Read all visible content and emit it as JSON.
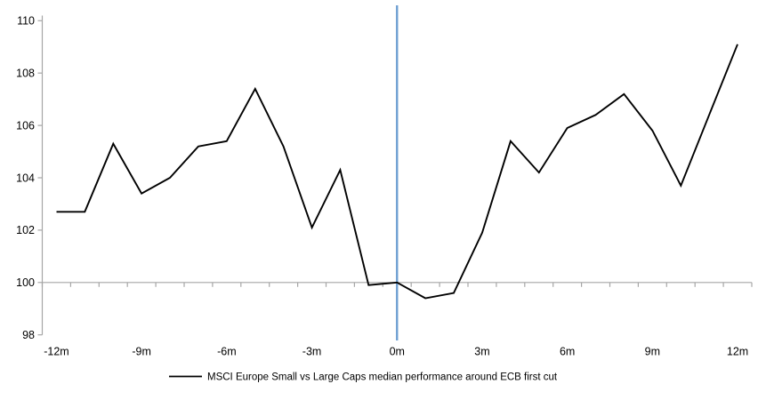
{
  "chart_data": {
    "type": "line",
    "title": "",
    "legend": "MSCI Europe Small vs Large Caps median performance around ECB first cut",
    "x": [
      -12,
      -11,
      -10,
      -9,
      -8,
      -7,
      -6,
      -5,
      -4,
      -3,
      -2,
      -1,
      0,
      1,
      2,
      3,
      4,
      5,
      6,
      7,
      8,
      9,
      10,
      11,
      12
    ],
    "series": [
      {
        "name": "MSCI Europe Small vs Large Caps median performance around ECB first cut",
        "values": [
          102.7,
          102.7,
          105.3,
          103.4,
          104.0,
          105.2,
          105.4,
          107.4,
          105.2,
          102.1,
          104.3,
          99.9,
          100.0,
          99.4,
          99.6,
          101.9,
          105.4,
          104.2,
          105.9,
          106.4,
          107.2,
          105.8,
          103.7,
          106.4,
          109.1
        ]
      }
    ],
    "ylim": [
      98,
      110
    ],
    "yticks": [
      98,
      100,
      102,
      104,
      106,
      108,
      110
    ],
    "ytick_labels": [
      "98",
      "100",
      "102",
      "104",
      "106",
      "108",
      "110"
    ],
    "xtick_positions": [
      -12,
      -9,
      -6,
      -3,
      0,
      3,
      6,
      9,
      12
    ],
    "xtick_labels": [
      "-12m",
      "-9m",
      "-6m",
      "-3m",
      "0m",
      "3m",
      "6m",
      "9m",
      "12m"
    ],
    "baseline_value": 100,
    "event_line_x": 0,
    "grid": "baseline-only",
    "legend_position": "bottom-center",
    "colors": {
      "series": "#000000",
      "event_line": "#6fa0d2",
      "axis": "#a6a6a6",
      "text": "#000000",
      "background": "#ffffff"
    }
  }
}
